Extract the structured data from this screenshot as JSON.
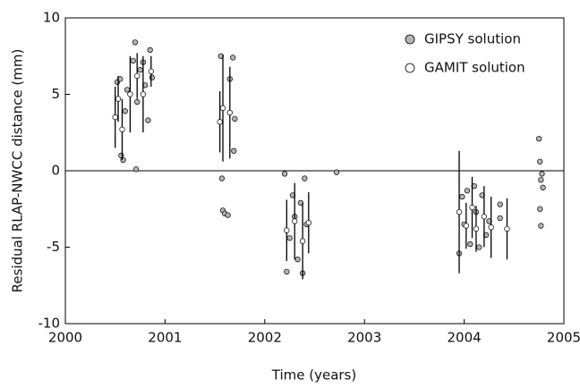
{
  "chart_data": {
    "type": "scatter",
    "xlabel": "Time (years)",
    "ylabel": "Residual RLAP-NWCC  distance (mm)",
    "xlim": [
      2000,
      2005
    ],
    "xticks": [
      2000,
      2001,
      2002,
      2003,
      2004,
      2005
    ],
    "ylim": [
      -10,
      10
    ],
    "yticks": [
      -10,
      -5,
      0,
      5,
      10
    ],
    "grid": false,
    "legend": "upper right",
    "series": [
      {
        "name": "GIPSY solution",
        "color": "#b4b4b4",
        "x": [
          2000.52,
          2000.55,
          2000.56,
          2000.58,
          2000.6,
          2000.62,
          2000.68,
          2000.7,
          2000.71,
          2000.72,
          2000.75,
          2000.78,
          2000.8,
          2000.83,
          2000.85,
          2000.87,
          2001.56,
          2001.57,
          2001.58,
          2001.6,
          2001.63,
          2001.65,
          2001.68,
          2001.69,
          2001.7,
          2002.2,
          2002.22,
          2002.25,
          2002.28,
          2002.3,
          2002.33,
          2002.36,
          2002.38,
          2002.4,
          2002.42,
          2002.72,
          2003.95,
          2003.98,
          2004.0,
          2004.03,
          2004.06,
          2004.1,
          2004.12,
          2004.15,
          2004.18,
          2004.22,
          2004.25,
          2004.36,
          2004.36,
          2004.75,
          2004.76,
          2004.78,
          2004.77,
          2004.79,
          2004.76,
          2004.77
        ],
        "values": [
          5.8,
          6.0,
          1.0,
          0.7,
          3.9,
          5.3,
          7.2,
          8.4,
          0.1,
          4.5,
          6.6,
          7.1,
          5.6,
          3.3,
          7.9,
          6.1,
          7.5,
          -0.5,
          -2.6,
          -2.8,
          -2.9,
          6.0,
          7.4,
          1.3,
          3.4,
          -0.2,
          -6.6,
          -4.4,
          -1.6,
          -3.0,
          -5.8,
          -2.1,
          -6.7,
          -0.5,
          -3.5,
          -0.1,
          -5.4,
          -1.7,
          -3.5,
          -1.3,
          -4.8,
          -1.0,
          -2.7,
          -5.0,
          -1.6,
          -4.2,
          -3.3,
          -2.2,
          -3.1,
          2.1,
          0.6,
          -0.2,
          -0.6,
          -1.1,
          -2.5,
          -3.6
        ]
      },
      {
        "name": "GAMIT solution",
        "color": "#ffffff",
        "x": [
          2000.5,
          2000.53,
          2000.57,
          2000.65,
          2000.72,
          2000.78,
          2000.86,
          2001.55,
          2001.58,
          2001.65,
          2002.22,
          2002.3,
          2002.38,
          2002.44,
          2003.95,
          2004.02,
          2004.08,
          2004.12,
          2004.2,
          2004.27,
          2004.43
        ],
        "values": [
          3.5,
          4.7,
          2.7,
          5.0,
          6.2,
          5.0,
          6.5,
          3.2,
          4.1,
          3.8,
          -3.9,
          -3.3,
          -4.6,
          -3.4,
          -2.7,
          -3.6,
          -2.4,
          -3.8,
          -3.0,
          -3.7,
          -3.8
        ],
        "errors": [
          2.0,
          1.5,
          2.0,
          2.5,
          1.5,
          2.5,
          1.0,
          2.0,
          3.5,
          3.0,
          2.0,
          2.5,
          2.5,
          2.0,
          4.0,
          1.5,
          2.0,
          1.5,
          2.0,
          2.0,
          2.0
        ]
      }
    ]
  }
}
